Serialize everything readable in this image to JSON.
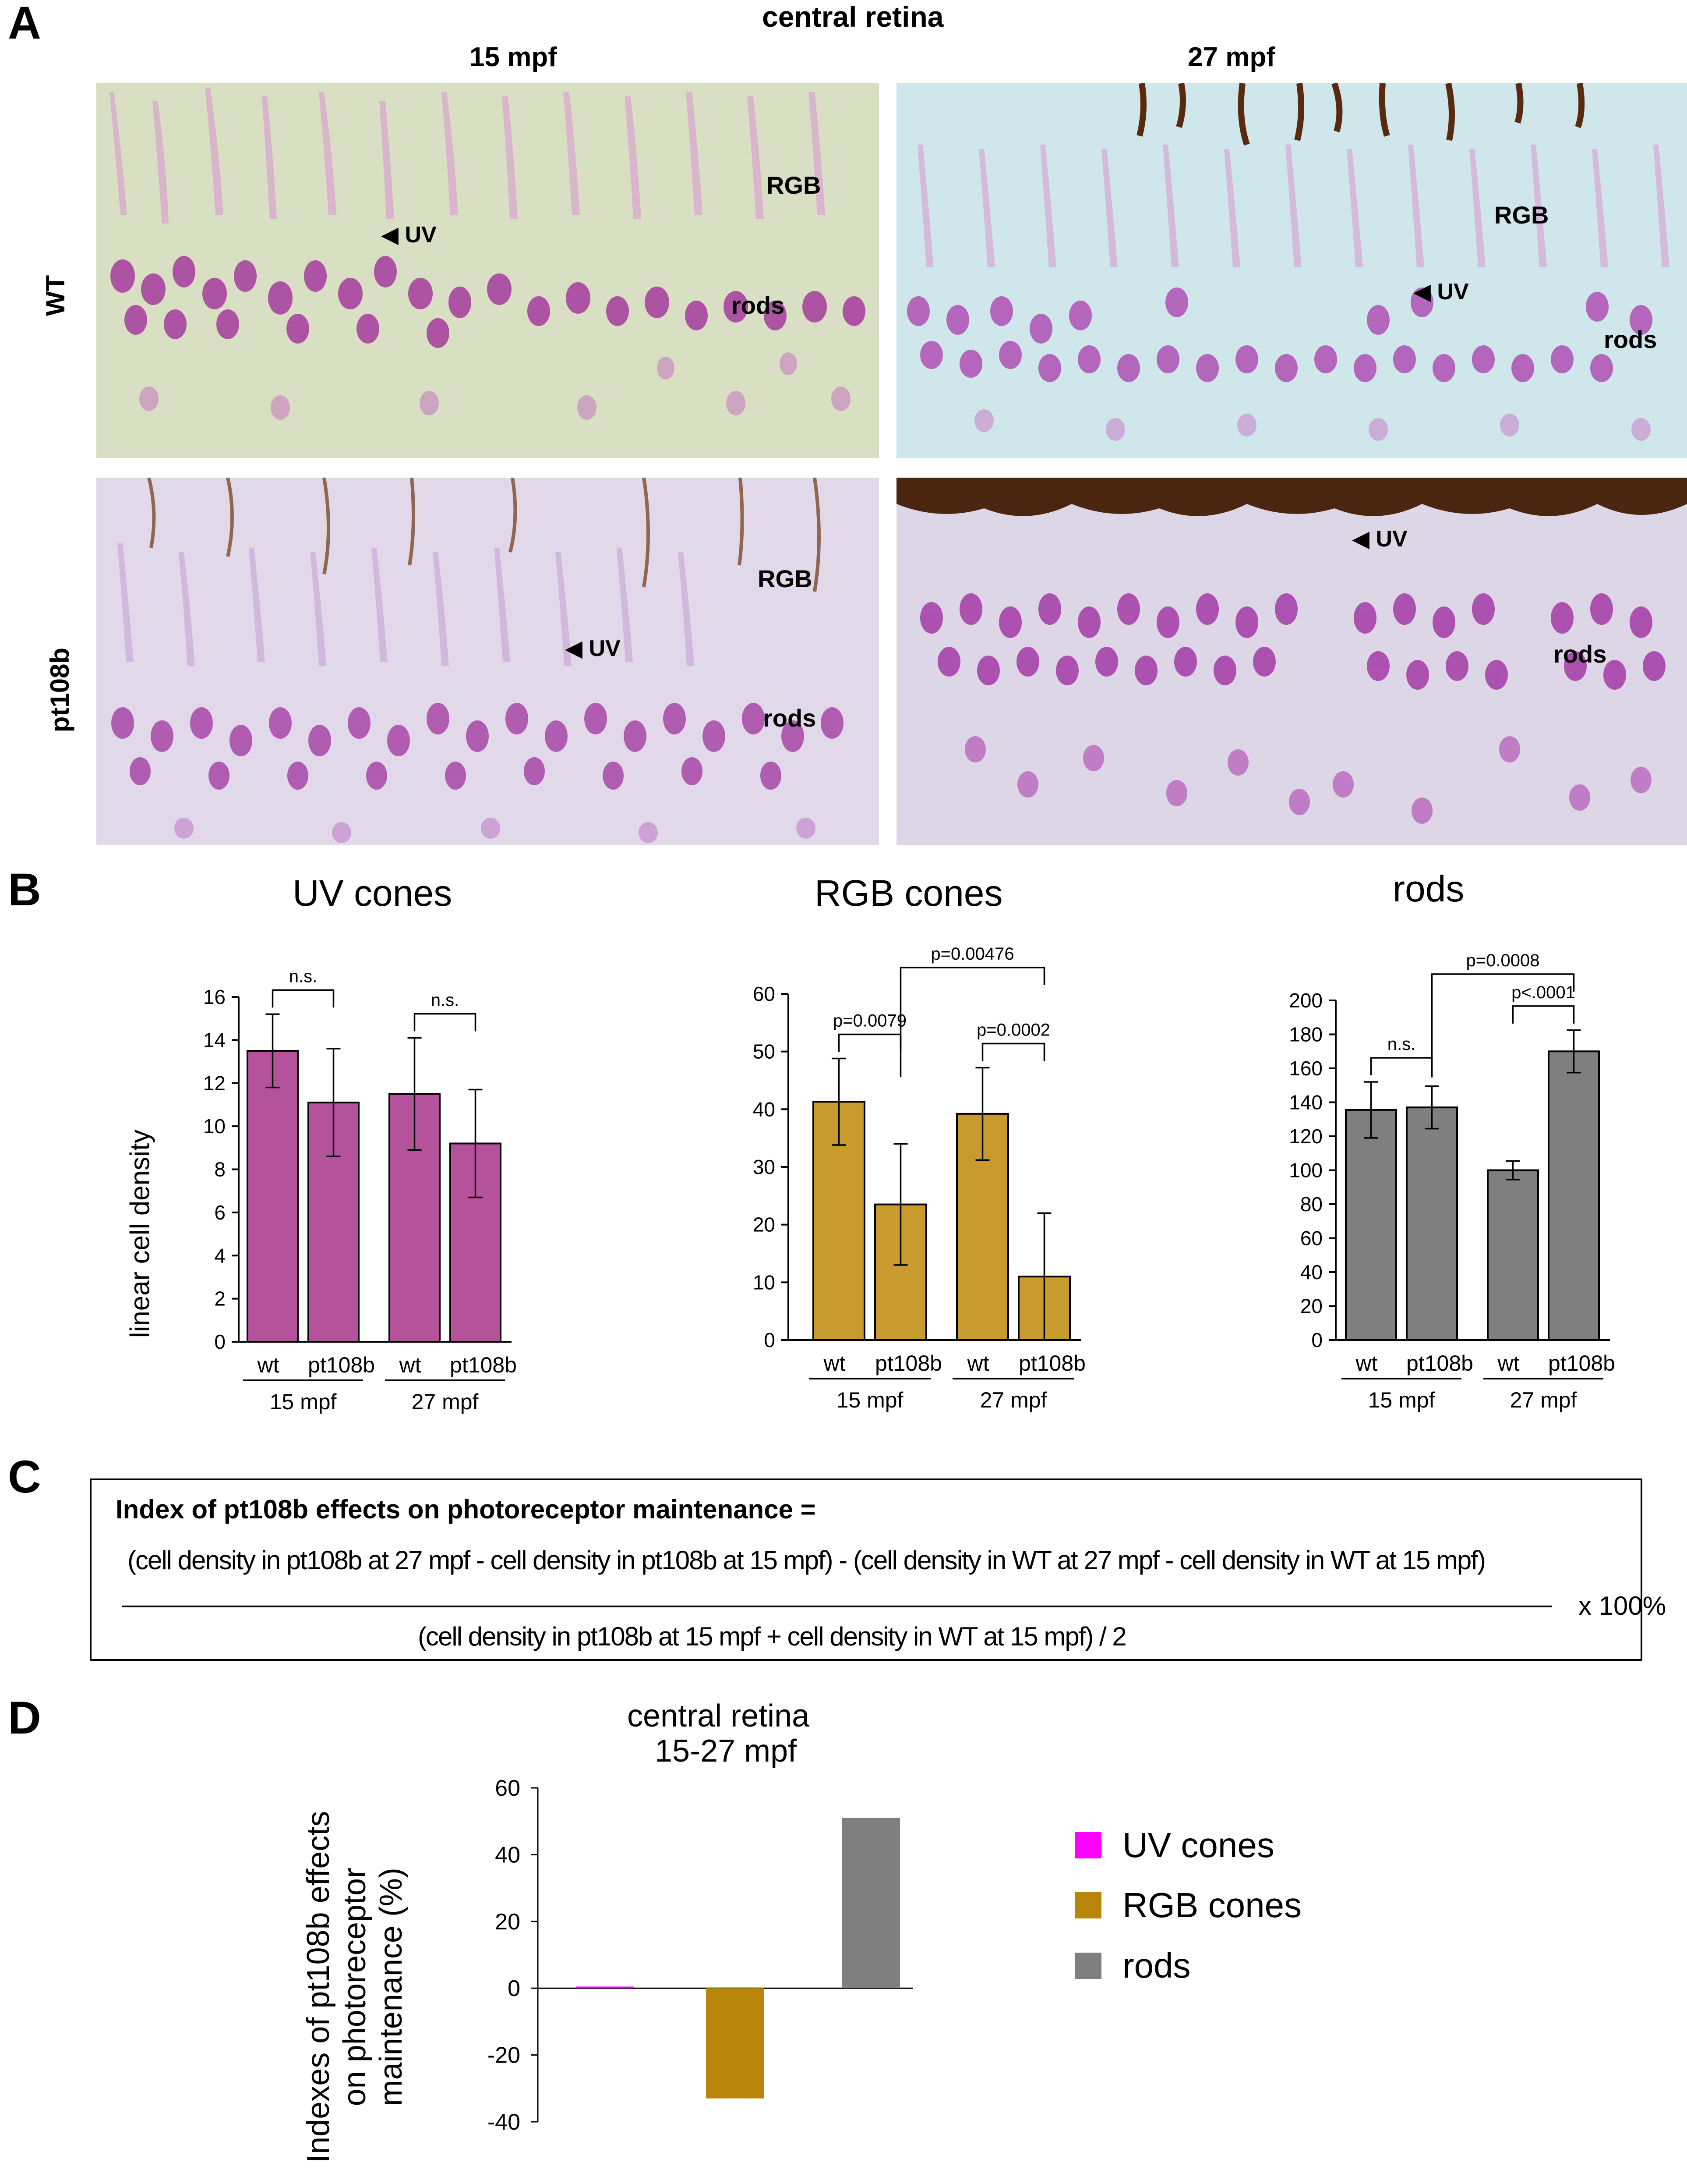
{
  "panel_a": {
    "letter": "A",
    "header": "central retina",
    "col_labels": [
      "15 mpf",
      "27 mpf"
    ],
    "row_labels": [
      "WT",
      "pt108b"
    ],
    "images": [
      {
        "labels": {
          "rgb": "RGB",
          "uv": "UV",
          "rods": "rods"
        }
      },
      {
        "labels": {
          "rgb": "RGB",
          "uv": "UV",
          "rods": "rods"
        }
      },
      {
        "labels": {
          "rgb": "RGB",
          "uv": "UV",
          "rods": "rods"
        }
      },
      {
        "labels": {
          "uv": "UV",
          "rods": "rods"
        }
      }
    ]
  },
  "panel_b": {
    "letter": "B",
    "ylabel": "linear cell density"
  },
  "panel_c": {
    "letter": "C",
    "title": "Index of pt108b effects on photoreceptor maintenance =",
    "numerator": "(cell density in pt108b at 27 mpf - cell density in pt108b at 15 mpf) - (cell density in WT at 27 mpf - cell density in WT at 15 mpf)",
    "denominator": "(cell density in pt108b at 15 mpf + cell density in WT at 15 mpf) / 2",
    "multiplier": "x 100%"
  },
  "panel_d": {
    "letter": "D"
  },
  "chart_data": [
    {
      "type": "bar",
      "title": "UV cones",
      "ylabel": "linear cell density",
      "ylim": [
        0,
        16
      ],
      "yticks": [
        0,
        2,
        4,
        6,
        8,
        10,
        12,
        14,
        16
      ],
      "color": "#b5529c",
      "categories": [
        "wt",
        "pt108b",
        "wt",
        "pt108b"
      ],
      "groups": [
        "15 mpf",
        "27 mpf"
      ],
      "values": [
        13.5,
        11.1,
        11.5,
        9.2
      ],
      "errors": [
        1.7,
        2.5,
        2.6,
        2.5
      ],
      "significance": [
        {
          "bars": [
            0,
            1
          ],
          "label": "n.s."
        },
        {
          "bars": [
            2,
            3
          ],
          "label": "n.s."
        }
      ]
    },
    {
      "type": "bar",
      "title": "RGB cones",
      "ylim": [
        0,
        60
      ],
      "yticks": [
        0,
        10,
        20,
        30,
        40,
        50,
        60
      ],
      "color": "#c99a2e",
      "categories": [
        "wt",
        "pt108b",
        "wt",
        "pt108b"
      ],
      "groups": [
        "15 mpf",
        "27 mpf"
      ],
      "values": [
        41.3,
        23.5,
        39.2,
        11.0
      ],
      "errors": [
        7.5,
        10.5,
        8.0,
        11.0
      ],
      "significance": [
        {
          "bars": [
            0,
            1
          ],
          "label": "p=0.0079"
        },
        {
          "bars": [
            2,
            3
          ],
          "label": "p=0.0002"
        },
        {
          "bars": [
            1,
            3
          ],
          "label": "p=0.00476"
        }
      ]
    },
    {
      "type": "bar",
      "title": "rods",
      "ylim": [
        0,
        200
      ],
      "yticks": [
        0,
        20,
        40,
        60,
        80,
        100,
        120,
        140,
        160,
        180,
        200
      ],
      "color": "#7f7f7f",
      "categories": [
        "wt",
        "pt108b",
        "wt",
        "pt108b"
      ],
      "groups": [
        "15 mpf",
        "27 mpf"
      ],
      "values": [
        135.5,
        137.0,
        100.0,
        170.0
      ],
      "errors": [
        16.5,
        12.5,
        5.5,
        12.5
      ],
      "significance": [
        {
          "bars": [
            0,
            1
          ],
          "label": "n.s."
        },
        {
          "bars": [
            2,
            3
          ],
          "label": "p<.0001"
        },
        {
          "bars": [
            1,
            3
          ],
          "label": "p=0.0008"
        }
      ]
    },
    {
      "type": "bar",
      "title": "central retina",
      "subtitle": "15-27 mpf",
      "ylabel": "Indexes of pt108b effects on photoreceptor maintenance (%)",
      "ylim": [
        -40,
        60
      ],
      "yticks": [
        -40,
        -20,
        0,
        20,
        40,
        60
      ],
      "categories": [
        "UV cones",
        "RGB cones",
        "rods"
      ],
      "values": [
        0.5,
        -33.0,
        51.0
      ],
      "colors": [
        "#ff00ff",
        "#b8860b",
        "#7f7f7f"
      ],
      "legend": [
        {
          "label": "UV cones",
          "color": "#ff00ff"
        },
        {
          "label": "RGB cones",
          "color": "#b8860b"
        },
        {
          "label": "rods",
          "color": "#7f7f7f"
        }
      ],
      "legend_position": "right"
    }
  ]
}
